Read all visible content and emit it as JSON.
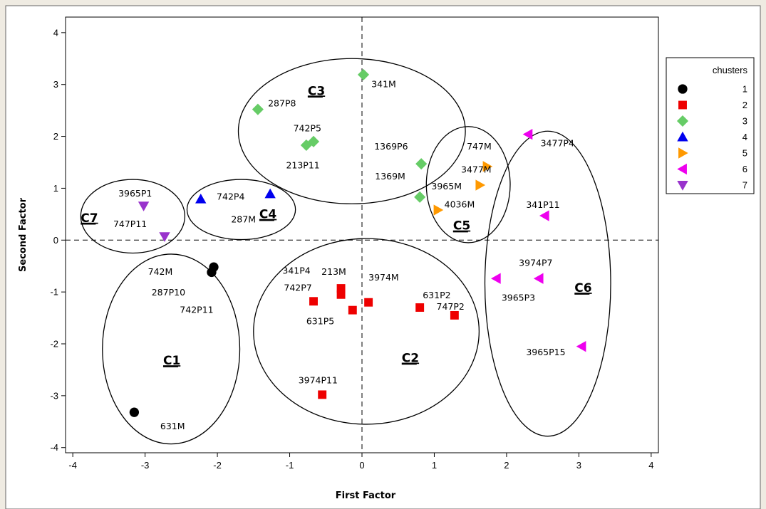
{
  "chart_data": {
    "type": "scatter",
    "xlabel": "First Factor",
    "ylabel": "Second Factor",
    "xlim": [
      -4.1,
      4.1
    ],
    "ylim": [
      -4.1,
      4.3
    ],
    "xticks": [
      -4,
      -3,
      -2,
      -1,
      0,
      1,
      2,
      3,
      4
    ],
    "yticks": [
      -4,
      -3,
      -2,
      -1,
      0,
      1,
      2,
      3,
      4
    ],
    "reference_lines": {
      "x": 0,
      "y": 0,
      "style": "dashed"
    },
    "legend": {
      "title": "chusters",
      "placement": "right",
      "entries": [
        "1",
        "2",
        "3",
        "4",
        "5",
        "6",
        "7"
      ]
    },
    "series": [
      {
        "name": "1",
        "marker": "circle",
        "color": "#000000",
        "points": [
          {
            "x": -2.05,
            "y": -0.52
          },
          {
            "x": -2.08,
            "y": -0.62
          },
          {
            "x": -3.15,
            "y": -3.32
          }
        ]
      },
      {
        "name": "2",
        "marker": "square",
        "color": "#ee0000",
        "points": [
          {
            "x": -0.67,
            "y": -1.18
          },
          {
            "x": -0.29,
            "y": -0.93
          },
          {
            "x": -0.29,
            "y": -1.05
          },
          {
            "x": -0.13,
            "y": -1.35
          },
          {
            "x": 0.09,
            "y": -1.2
          },
          {
            "x": 0.8,
            "y": -1.3
          },
          {
            "x": 1.28,
            "y": -1.45
          },
          {
            "x": -0.55,
            "y": -2.98
          }
        ]
      },
      {
        "name": "3",
        "marker": "diamond",
        "color": "#66cc66",
        "points": [
          {
            "x": 0.02,
            "y": 3.19
          },
          {
            "x": -1.44,
            "y": 2.52
          },
          {
            "x": -0.67,
            "y": 1.9
          },
          {
            "x": -0.77,
            "y": 1.83
          },
          {
            "x": 0.82,
            "y": 1.47
          },
          {
            "x": 0.8,
            "y": 0.83
          }
        ]
      },
      {
        "name": "4",
        "marker": "triangle-up",
        "color": "#0000ee",
        "points": [
          {
            "x": -2.23,
            "y": 0.79
          },
          {
            "x": -1.27,
            "y": 0.89
          }
        ]
      },
      {
        "name": "5",
        "marker": "triangle-right",
        "color": "#ff9900",
        "points": [
          {
            "x": 1.73,
            "y": 1.42
          },
          {
            "x": 1.63,
            "y": 1.06
          },
          {
            "x": 1.05,
            "y": 0.58
          }
        ]
      },
      {
        "name": "6",
        "marker": "triangle-left",
        "color": "#ee00ee",
        "points": [
          {
            "x": 2.3,
            "y": 2.04
          },
          {
            "x": 2.53,
            "y": 0.47
          },
          {
            "x": 1.86,
            "y": -0.74
          },
          {
            "x": 2.45,
            "y": -0.74
          },
          {
            "x": 3.04,
            "y": -2.05
          }
        ]
      },
      {
        "name": "7",
        "marker": "triangle-down",
        "color": "#9933cc",
        "points": [
          {
            "x": -3.02,
            "y": 0.66
          },
          {
            "x": -2.73,
            "y": 0.07
          }
        ]
      }
    ],
    "point_labels": [
      {
        "text": "341M",
        "x": 0.13,
        "y": 2.95
      },
      {
        "text": "287P8",
        "x": -1.3,
        "y": 2.58
      },
      {
        "text": "742P5",
        "x": -0.95,
        "y": 2.1
      },
      {
        "text": "213P11",
        "x": -1.05,
        "y": 1.38
      },
      {
        "text": "1369P6",
        "x": 0.17,
        "y": 1.75
      },
      {
        "text": "1369M",
        "x": 0.18,
        "y": 1.17
      },
      {
        "text": "747M",
        "x": 1.45,
        "y": 1.75
      },
      {
        "text": "3477M",
        "x": 1.37,
        "y": 1.3
      },
      {
        "text": "3965M",
        "x": 0.96,
        "y": 0.98
      },
      {
        "text": "4036M",
        "x": 1.14,
        "y": 0.63
      },
      {
        "text": "3477P4",
        "x": 2.47,
        "y": 1.81
      },
      {
        "text": "341P11",
        "x": 2.27,
        "y": 0.62
      },
      {
        "text": "3974P7",
        "x": 2.17,
        "y": -0.5
      },
      {
        "text": "3965P3",
        "x": 1.93,
        "y": -1.17
      },
      {
        "text": "3965P15",
        "x": 2.27,
        "y": -2.22
      },
      {
        "text": "3965P1",
        "x": -3.37,
        "y": 0.84
      },
      {
        "text": "747P11",
        "x": -3.44,
        "y": 0.25
      },
      {
        "text": "742P4",
        "x": -2.01,
        "y": 0.78
      },
      {
        "text": "287M",
        "x": -1.81,
        "y": 0.34
      },
      {
        "text": "742M",
        "x": -2.96,
        "y": -0.67
      },
      {
        "text": "287P10",
        "x": -2.91,
        "y": -1.07
      },
      {
        "text": "742P11",
        "x": -2.52,
        "y": -1.4
      },
      {
        "text": "631M",
        "x": -2.79,
        "y": -3.65
      },
      {
        "text": "341P4",
        "x": -1.1,
        "y": -0.65
      },
      {
        "text": "213M",
        "x": -0.56,
        "y": -0.67
      },
      {
        "text": "742P7",
        "x": -1.08,
        "y": -0.98
      },
      {
        "text": "3974M",
        "x": 0.09,
        "y": -0.78
      },
      {
        "text": "631P2",
        "x": 0.84,
        "y": -1.12
      },
      {
        "text": "747P2",
        "x": 1.03,
        "y": -1.34
      },
      {
        "text": "631P5",
        "x": -0.77,
        "y": -1.62
      },
      {
        "text": "3974P11",
        "x": -0.88,
        "y": -2.76
      }
    ],
    "clusters": [
      {
        "label": "C1",
        "cx": -2.64,
        "cy": -2.1,
        "rx": 0.95,
        "ry": 1.83,
        "label_x": -2.75,
        "label_y": -2.4
      },
      {
        "label": "C2",
        "cx": 0.06,
        "cy": -1.76,
        "rx": 1.56,
        "ry": 1.79,
        "label_x": 0.55,
        "label_y": -2.35
      },
      {
        "label": "C3",
        "cx": -0.14,
        "cy": 2.1,
        "rx": 1.57,
        "ry": 1.4,
        "label_x": -0.75,
        "label_y": 2.8
      },
      {
        "label": "C4",
        "cx": -1.67,
        "cy": 0.59,
        "rx": 0.75,
        "ry": 0.58,
        "label_x": -1.42,
        "label_y": 0.42
      },
      {
        "label": "C5",
        "cx": 1.47,
        "cy": 1.07,
        "rx": 0.58,
        "ry": 1.12,
        "label_x": 1.26,
        "label_y": 0.2
      },
      {
        "label": "C6",
        "cx": 2.57,
        "cy": -0.84,
        "rx": 0.87,
        "ry": 2.94,
        "label_x": 2.94,
        "label_y": -1.0
      },
      {
        "label": "C7",
        "cx": -3.17,
        "cy": 0.46,
        "rx": 0.72,
        "ry": 0.71,
        "label_x": -3.89,
        "label_y": 0.35
      }
    ]
  }
}
